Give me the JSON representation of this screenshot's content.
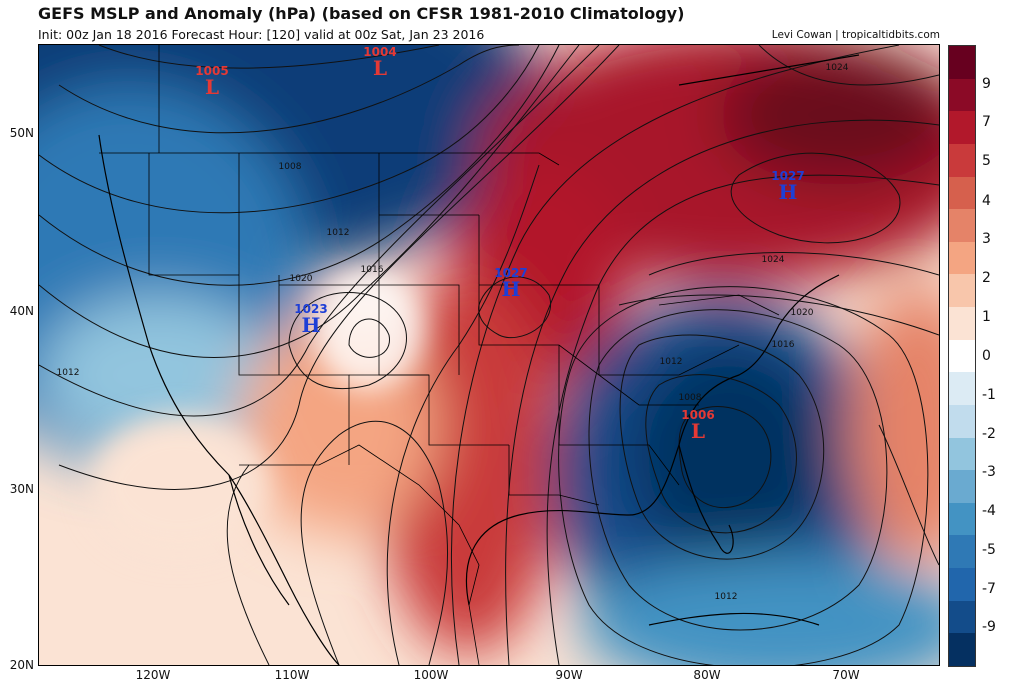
{
  "header": {
    "title": "GEFS MSLP and Anomaly (hPa) (based on CFSR 1981-2010 Climatology)",
    "subtitle": "Init: 00z Jan 18 2016   Forecast Hour: [120]   valid at 00z Sat, Jan 23 2016",
    "credit": "Levi Cowan | tropicaltidbits.com"
  },
  "axes": {
    "lat_labels": [
      "50N",
      "40N",
      "30N",
      "20N"
    ],
    "lon_labels": [
      "120W",
      "110W",
      "100W",
      "90W",
      "80W",
      "70W"
    ]
  },
  "colorbar": {
    "labels": [
      "9",
      "7",
      "5",
      "4",
      "3",
      "2",
      "1",
      "0",
      "-1",
      "-2",
      "-3",
      "-4",
      "-5",
      "-7",
      "-9"
    ],
    "colors": [
      "#67001f",
      "#8b0a26",
      "#b2182b",
      "#c93a3b",
      "#d6604d",
      "#e58368",
      "#f4a582",
      "#f8c6ab",
      "#fbe3d4",
      "#ffffff",
      "#dcebf4",
      "#c1dced",
      "#92c5de",
      "#6aaad0",
      "#4393c3",
      "#2f79b5",
      "#2166ac",
      "#134c8a",
      "#053061"
    ]
  },
  "systems": [
    {
      "type": "L",
      "pressure": "1005"
    },
    {
      "type": "L",
      "pressure": "1004"
    },
    {
      "type": "H",
      "pressure": "1023"
    },
    {
      "type": "H",
      "pressure": "1027"
    },
    {
      "type": "H",
      "pressure": "1027"
    },
    {
      "type": "L",
      "pressure": "1006"
    }
  ],
  "isobar_labels": [
    "1008",
    "1012",
    "1016",
    "1020",
    "1012",
    "1024",
    "1020",
    "1016",
    "1012",
    "1008",
    "1024",
    "1012"
  ]
}
